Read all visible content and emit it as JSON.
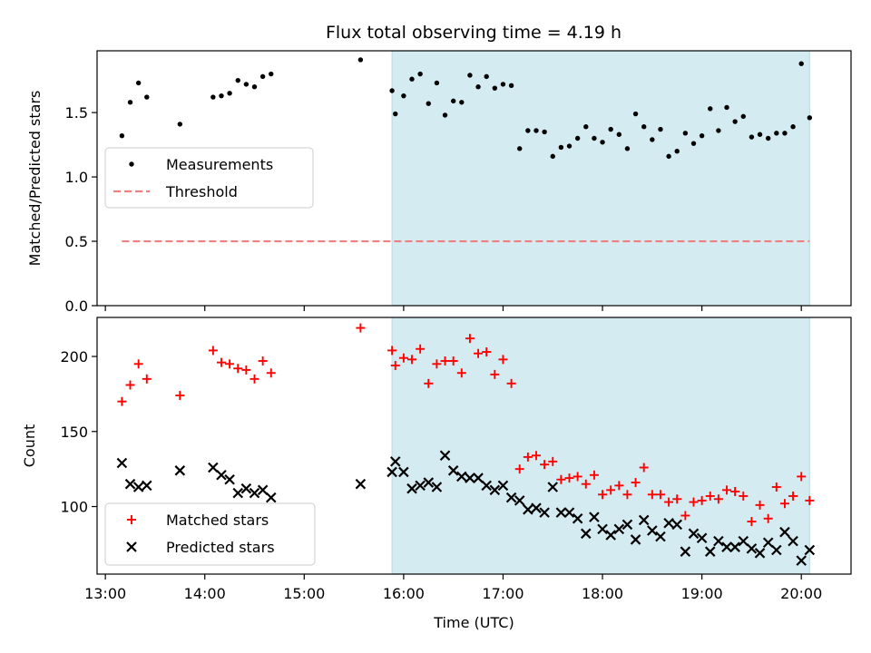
{
  "title": "Flux total observing time = 4.19 h",
  "chart_data": [
    {
      "type": "scatter",
      "ylabel": "Matched/Predicted stars",
      "xlabel": "",
      "ylim": [
        0,
        1.98
      ],
      "yticks": [
        "0.0",
        "0.5",
        "1.0",
        "1.5"
      ],
      "yticks_values": [
        0,
        0.5,
        1.0,
        1.5
      ],
      "shaded_region": {
        "x_start": "15:53",
        "x_end": "20:05",
        "color": "#d4ebf1"
      },
      "legend_position": "center-left",
      "series": [
        {
          "name": "Measurements",
          "marker": "dot",
          "color": "#000000",
          "points": [
            [
              "13:10",
              1.32
            ],
            [
              "13:15",
              1.58
            ],
            [
              "13:20",
              1.73
            ],
            [
              "13:25",
              1.62
            ],
            [
              "13:45",
              1.41
            ],
            [
              "14:05",
              1.62
            ],
            [
              "14:10",
              1.63
            ],
            [
              "14:15",
              1.65
            ],
            [
              "14:20",
              1.75
            ],
            [
              "14:25",
              1.72
            ],
            [
              "14:30",
              1.7
            ],
            [
              "14:35",
              1.78
            ],
            [
              "14:40",
              1.8
            ],
            [
              "15:34",
              1.91
            ],
            [
              "15:53",
              1.67
            ],
            [
              "15:55",
              1.49
            ],
            [
              "16:00",
              1.63
            ],
            [
              "16:05",
              1.76
            ],
            [
              "16:10",
              1.8
            ],
            [
              "16:15",
              1.57
            ],
            [
              "16:20",
              1.73
            ],
            [
              "16:25",
              1.48
            ],
            [
              "16:30",
              1.59
            ],
            [
              "16:35",
              1.58
            ],
            [
              "16:40",
              1.79
            ],
            [
              "16:45",
              1.7
            ],
            [
              "16:50",
              1.78
            ],
            [
              "16:55",
              1.69
            ],
            [
              "17:00",
              1.72
            ],
            [
              "17:05",
              1.71
            ],
            [
              "17:10",
              1.22
            ],
            [
              "17:15",
              1.36
            ],
            [
              "17:20",
              1.36
            ],
            [
              "17:25",
              1.35
            ],
            [
              "17:30",
              1.16
            ],
            [
              "17:35",
              1.23
            ],
            [
              "17:40",
              1.24
            ],
            [
              "17:45",
              1.3
            ],
            [
              "17:50",
              1.39
            ],
            [
              "17:55",
              1.3
            ],
            [
              "18:00",
              1.27
            ],
            [
              "18:05",
              1.37
            ],
            [
              "18:10",
              1.33
            ],
            [
              "18:15",
              1.22
            ],
            [
              "18:20",
              1.49
            ],
            [
              "18:25",
              1.39
            ],
            [
              "18:30",
              1.29
            ],
            [
              "18:35",
              1.37
            ],
            [
              "18:40",
              1.16
            ],
            [
              "18:45",
              1.2
            ],
            [
              "18:50",
              1.34
            ],
            [
              "18:55",
              1.26
            ],
            [
              "19:00",
              1.32
            ],
            [
              "19:05",
              1.53
            ],
            [
              "19:10",
              1.36
            ],
            [
              "19:15",
              1.54
            ],
            [
              "19:20",
              1.43
            ],
            [
              "19:25",
              1.47
            ],
            [
              "19:30",
              1.31
            ],
            [
              "19:35",
              1.33
            ],
            [
              "19:40",
              1.3
            ],
            [
              "19:45",
              1.34
            ],
            [
              "19:50",
              1.34
            ],
            [
              "19:55",
              1.39
            ],
            [
              "20:00",
              1.88
            ],
            [
              "20:05",
              1.46
            ]
          ]
        },
        {
          "name": "Threshold",
          "marker": "dashed-line",
          "color": "#f08080",
          "points": [
            [
              "13:10",
              0.5
            ],
            [
              "20:05",
              0.5
            ]
          ]
        }
      ]
    },
    {
      "type": "scatter",
      "ylabel": "Count",
      "xlabel": "Time (UTC)",
      "ylim": [
        55,
        226
      ],
      "yticks": [
        "100",
        "150",
        "200"
      ],
      "yticks_values": [
        100,
        150,
        200
      ],
      "xlim": [
        "12:55",
        "20:30"
      ],
      "xticks": [
        "13:00",
        "14:00",
        "15:00",
        "16:00",
        "17:00",
        "18:00",
        "19:00",
        "20:00"
      ],
      "shaded_region": {
        "x_start": "15:53",
        "x_end": "20:05",
        "color": "#d4ebf1"
      },
      "legend_position": "lower-left",
      "series": [
        {
          "name": "Matched stars",
          "marker": "plus",
          "color": "#ff0000",
          "points": [
            [
              "13:10",
              170
            ],
            [
              "13:15",
              181
            ],
            [
              "13:20",
              195
            ],
            [
              "13:25",
              185
            ],
            [
              "13:45",
              174
            ],
            [
              "14:05",
              204
            ],
            [
              "14:10",
              196
            ],
            [
              "14:15",
              195
            ],
            [
              "14:20",
              192
            ],
            [
              "14:25",
              191
            ],
            [
              "14:30",
              185
            ],
            [
              "14:35",
              197
            ],
            [
              "14:40",
              189
            ],
            [
              "15:34",
              219
            ],
            [
              "15:53",
              204
            ],
            [
              "15:55",
              194
            ],
            [
              "16:00",
              199
            ],
            [
              "16:05",
              198
            ],
            [
              "16:10",
              205
            ],
            [
              "16:15",
              182
            ],
            [
              "16:20",
              195
            ],
            [
              "16:25",
              197
            ],
            [
              "16:30",
              197
            ],
            [
              "16:35",
              189
            ],
            [
              "16:40",
              212
            ],
            [
              "16:45",
              202
            ],
            [
              "16:50",
              203
            ],
            [
              "16:55",
              188
            ],
            [
              "17:00",
              198
            ],
            [
              "17:05",
              182
            ],
            [
              "17:10",
              125
            ],
            [
              "17:15",
              133
            ],
            [
              "17:20",
              134
            ],
            [
              "17:25",
              128
            ],
            [
              "17:30",
              130
            ],
            [
              "17:35",
              118
            ],
            [
              "17:40",
              119
            ],
            [
              "17:45",
              120
            ],
            [
              "17:50",
              115
            ],
            [
              "17:55",
              121
            ],
            [
              "18:00",
              108
            ],
            [
              "18:05",
              111
            ],
            [
              "18:10",
              114
            ],
            [
              "18:15",
              108
            ],
            [
              "18:20",
              116
            ],
            [
              "18:25",
              126
            ],
            [
              "18:30",
              108
            ],
            [
              "18:35",
              108
            ],
            [
              "18:40",
              103
            ],
            [
              "18:45",
              105
            ],
            [
              "18:50",
              94
            ],
            [
              "18:55",
              103
            ],
            [
              "19:00",
              104
            ],
            [
              "19:05",
              107
            ],
            [
              "19:10",
              105
            ],
            [
              "19:15",
              111
            ],
            [
              "19:20",
              110
            ],
            [
              "19:25",
              107
            ],
            [
              "19:30",
              90
            ],
            [
              "19:35",
              101
            ],
            [
              "19:40",
              92
            ],
            [
              "19:45",
              113
            ],
            [
              "19:50",
              102
            ],
            [
              "19:55",
              107
            ],
            [
              "20:00",
              120
            ],
            [
              "20:05",
              104
            ]
          ]
        },
        {
          "name": "Predicted stars",
          "marker": "x",
          "color": "#000000",
          "points": [
            [
              "13:10",
              129
            ],
            [
              "13:15",
              115
            ],
            [
              "13:20",
              113
            ],
            [
              "13:25",
              114
            ],
            [
              "13:45",
              124
            ],
            [
              "14:05",
              126
            ],
            [
              "14:10",
              121
            ],
            [
              "14:15",
              118
            ],
            [
              "14:20",
              109
            ],
            [
              "14:25",
              112
            ],
            [
              "14:30",
              109
            ],
            [
              "14:35",
              111
            ],
            [
              "14:40",
              106
            ],
            [
              "15:34",
              115
            ],
            [
              "15:53",
              123
            ],
            [
              "15:55",
              130
            ],
            [
              "16:00",
              123
            ],
            [
              "16:05",
              112
            ],
            [
              "16:10",
              114
            ],
            [
              "16:15",
              116
            ],
            [
              "16:20",
              113
            ],
            [
              "16:25",
              134
            ],
            [
              "16:30",
              124
            ],
            [
              "16:35",
              120
            ],
            [
              "16:40",
              119
            ],
            [
              "16:45",
              119
            ],
            [
              "16:50",
              114
            ],
            [
              "16:55",
              111
            ],
            [
              "17:00",
              114
            ],
            [
              "17:05",
              106
            ],
            [
              "17:10",
              104
            ],
            [
              "17:15",
              98
            ],
            [
              "17:20",
              99
            ],
            [
              "17:25",
              96
            ],
            [
              "17:30",
              113
            ],
            [
              "17:35",
              96
            ],
            [
              "17:40",
              96
            ],
            [
              "17:45",
              92
            ],
            [
              "17:50",
              82
            ],
            [
              "17:55",
              93
            ],
            [
              "18:00",
              85
            ],
            [
              "18:05",
              81
            ],
            [
              "18:10",
              85
            ],
            [
              "18:15",
              88
            ],
            [
              "18:20",
              78
            ],
            [
              "18:25",
              91
            ],
            [
              "18:30",
              84
            ],
            [
              "18:35",
              80
            ],
            [
              "18:40",
              89
            ],
            [
              "18:45",
              88
            ],
            [
              "18:50",
              70
            ],
            [
              "18:55",
              82
            ],
            [
              "19:00",
              79
            ],
            [
              "19:05",
              70
            ],
            [
              "19:10",
              77
            ],
            [
              "19:15",
              73
            ],
            [
              "19:20",
              73
            ],
            [
              "19:25",
              77
            ],
            [
              "19:30",
              72
            ],
            [
              "19:35",
              69
            ],
            [
              "19:40",
              76
            ],
            [
              "19:45",
              71
            ],
            [
              "19:50",
              83
            ],
            [
              "19:55",
              77
            ],
            [
              "20:00",
              64
            ],
            [
              "20:05",
              71
            ]
          ]
        }
      ]
    }
  ]
}
